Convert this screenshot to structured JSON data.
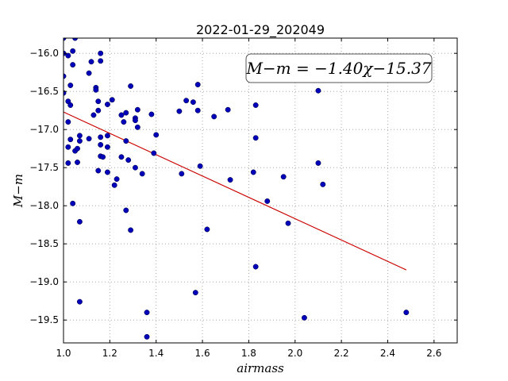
{
  "chart_data": {
    "type": "scatter",
    "title": "2022-01-29_202049",
    "xlabel": "airmass",
    "ylabel": "M−m",
    "xlim": [
      1.0,
      2.7
    ],
    "ylim": [
      -19.8,
      -15.8
    ],
    "y_inverted": true,
    "grid": true,
    "x_ticks": [
      1.0,
      1.2,
      1.4,
      1.6,
      1.8,
      2.0,
      2.2,
      2.4,
      2.6
    ],
    "x_tick_labels": [
      "1.0",
      "1.2",
      "1.4",
      "1.6",
      "1.8",
      "2.0",
      "2.2",
      "2.4",
      "2.6"
    ],
    "y_ticks": [
      -16.0,
      -16.5,
      -17.0,
      -17.5,
      -18.0,
      -18.5,
      -19.0,
      -19.5
    ],
    "y_tick_labels": [
      "−16.0",
      "−16.5",
      "−17.0",
      "−17.5",
      "−18.0",
      "−18.5",
      "−19.0",
      "−19.5"
    ],
    "annotation": "M−m = −1.40χ−15.37",
    "fit": {
      "slope": -1.4,
      "intercept": -15.37,
      "x_range": [
        1.0,
        2.48
      ],
      "color": "#cc0000"
    },
    "point_color": "#0000bb",
    "points": [
      [
        1.0,
        -15.8
      ],
      [
        1.0,
        -16.0
      ],
      [
        1.0,
        -16.3
      ],
      [
        1.0,
        -16.52
      ],
      [
        1.02,
        -16.03
      ],
      [
        1.05,
        -15.8
      ],
      [
        1.04,
        -15.97
      ],
      [
        1.04,
        -16.15
      ],
      [
        1.03,
        -16.42
      ],
      [
        1.02,
        -16.63
      ],
      [
        1.03,
        -16.68
      ],
      [
        1.02,
        -16.9
      ],
      [
        1.03,
        -17.13
      ],
      [
        1.02,
        -17.23
      ],
      [
        1.05,
        -17.28
      ],
      [
        1.06,
        -17.25
      ],
      [
        1.06,
        -17.43
      ],
      [
        1.02,
        -17.44
      ],
      [
        1.04,
        -17.97
      ],
      [
        1.07,
        -17.08
      ],
      [
        1.07,
        -17.15
      ],
      [
        1.11,
        -16.26
      ],
      [
        1.12,
        -16.11
      ],
      [
        1.14,
        -16.45
      ],
      [
        1.14,
        -16.48
      ],
      [
        1.13,
        -16.81
      ],
      [
        1.11,
        -17.12
      ],
      [
        1.15,
        -16.63
      ],
      [
        1.15,
        -16.75
      ],
      [
        1.16,
        -16.0
      ],
      [
        1.16,
        -16.1
      ],
      [
        1.16,
        -17.1
      ],
      [
        1.16,
        -17.2
      ],
      [
        1.15,
        -17.54
      ],
      [
        1.16,
        -17.35
      ],
      [
        1.17,
        -17.36
      ],
      [
        1.19,
        -16.67
      ],
      [
        1.19,
        -17.08
      ],
      [
        1.19,
        -17.23
      ],
      [
        1.19,
        -17.56
      ],
      [
        1.21,
        -16.61
      ],
      [
        1.23,
        -17.65
      ],
      [
        1.22,
        -17.73
      ],
      [
        1.25,
        -16.81
      ],
      [
        1.26,
        -16.9
      ],
      [
        1.27,
        -16.78
      ],
      [
        1.27,
        -17.15
      ],
      [
        1.25,
        -17.36
      ],
      [
        1.28,
        -17.4
      ],
      [
        1.27,
        -18.06
      ],
      [
        1.29,
        -16.43
      ],
      [
        1.31,
        -16.85
      ],
      [
        1.31,
        -16.88
      ],
      [
        1.32,
        -16.74
      ],
      [
        1.32,
        -16.97
      ],
      [
        1.31,
        -17.5
      ],
      [
        1.34,
        -17.58
      ],
      [
        1.29,
        -18.32
      ],
      [
        1.38,
        -16.8
      ],
      [
        1.4,
        -17.07
      ],
      [
        1.39,
        -17.31
      ],
      [
        1.5,
        -16.76
      ],
      [
        1.51,
        -17.58
      ],
      [
        1.53,
        -16.62
      ],
      [
        1.56,
        -16.64
      ],
      [
        1.58,
        -16.41
      ],
      [
        1.58,
        -16.75
      ],
      [
        1.59,
        -17.48
      ],
      [
        1.62,
        -18.31
      ],
      [
        1.65,
        -16.83
      ],
      [
        1.71,
        -16.74
      ],
      [
        1.72,
        -17.66
      ],
      [
        1.83,
        -16.68
      ],
      [
        1.83,
        -17.11
      ],
      [
        1.82,
        -17.56
      ],
      [
        1.88,
        -17.94
      ],
      [
        1.95,
        -17.62
      ],
      [
        1.97,
        -18.23
      ],
      [
        1.83,
        -18.8
      ],
      [
        1.07,
        -18.21
      ],
      [
        1.07,
        -19.26
      ],
      [
        1.36,
        -19.4
      ],
      [
        1.36,
        -19.72
      ],
      [
        1.57,
        -19.14
      ],
      [
        2.04,
        -19.47
      ],
      [
        2.1,
        -16.49
      ],
      [
        2.1,
        -17.44
      ],
      [
        2.12,
        -17.72
      ],
      [
        2.48,
        -19.4
      ]
    ]
  }
}
